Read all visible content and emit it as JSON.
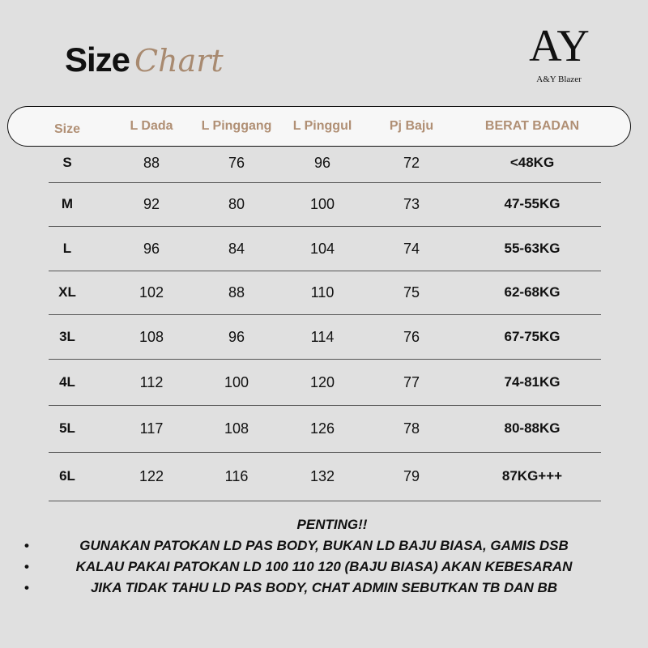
{
  "title": {
    "bold": "Size",
    "script": "Chart"
  },
  "logo": {
    "mark": "AY",
    "text": "A&Y Blazer"
  },
  "headers": [
    "Size",
    "L Dada",
    "L Pinggang",
    "L Pinggul",
    "Pj Baju",
    "BERAT BADAN"
  ],
  "rows": [
    [
      "S",
      "88",
      "76",
      "96",
      "72",
      "<48KG"
    ],
    [
      "M",
      "92",
      "80",
      "100",
      "73",
      "47-55KG"
    ],
    [
      "L",
      "96",
      "84",
      "104",
      "74",
      "55-63KG"
    ],
    [
      "XL",
      "102",
      "88",
      "110",
      "75",
      "62-68KG"
    ],
    [
      "3L",
      "108",
      "96",
      "114",
      "76",
      "67-75KG"
    ],
    [
      "4L",
      "112",
      "100",
      "120",
      "77",
      "74-81KG"
    ],
    [
      "5L",
      "117",
      "108",
      "126",
      "78",
      "80-88KG"
    ],
    [
      "6L",
      "122",
      "116",
      "132",
      "79",
      "87KG+++"
    ]
  ],
  "notes": {
    "heading": "PENTING!!",
    "items": [
      "GUNAKAN PATOKAN LD PAS BODY, BUKAN LD BAJU BIASA, GAMIS DSB",
      "KALAU PAKAI PATOKAN LD 100 110 120 (BAJU BIASA) AKAN KEBESARAN",
      "JIKA TIDAK TAHU LD PAS BODY, CHAT ADMIN SEBUTKAN TB DAN BB"
    ]
  },
  "colors": {
    "accent": "#b08f74",
    "background": "#e0e0e0"
  }
}
